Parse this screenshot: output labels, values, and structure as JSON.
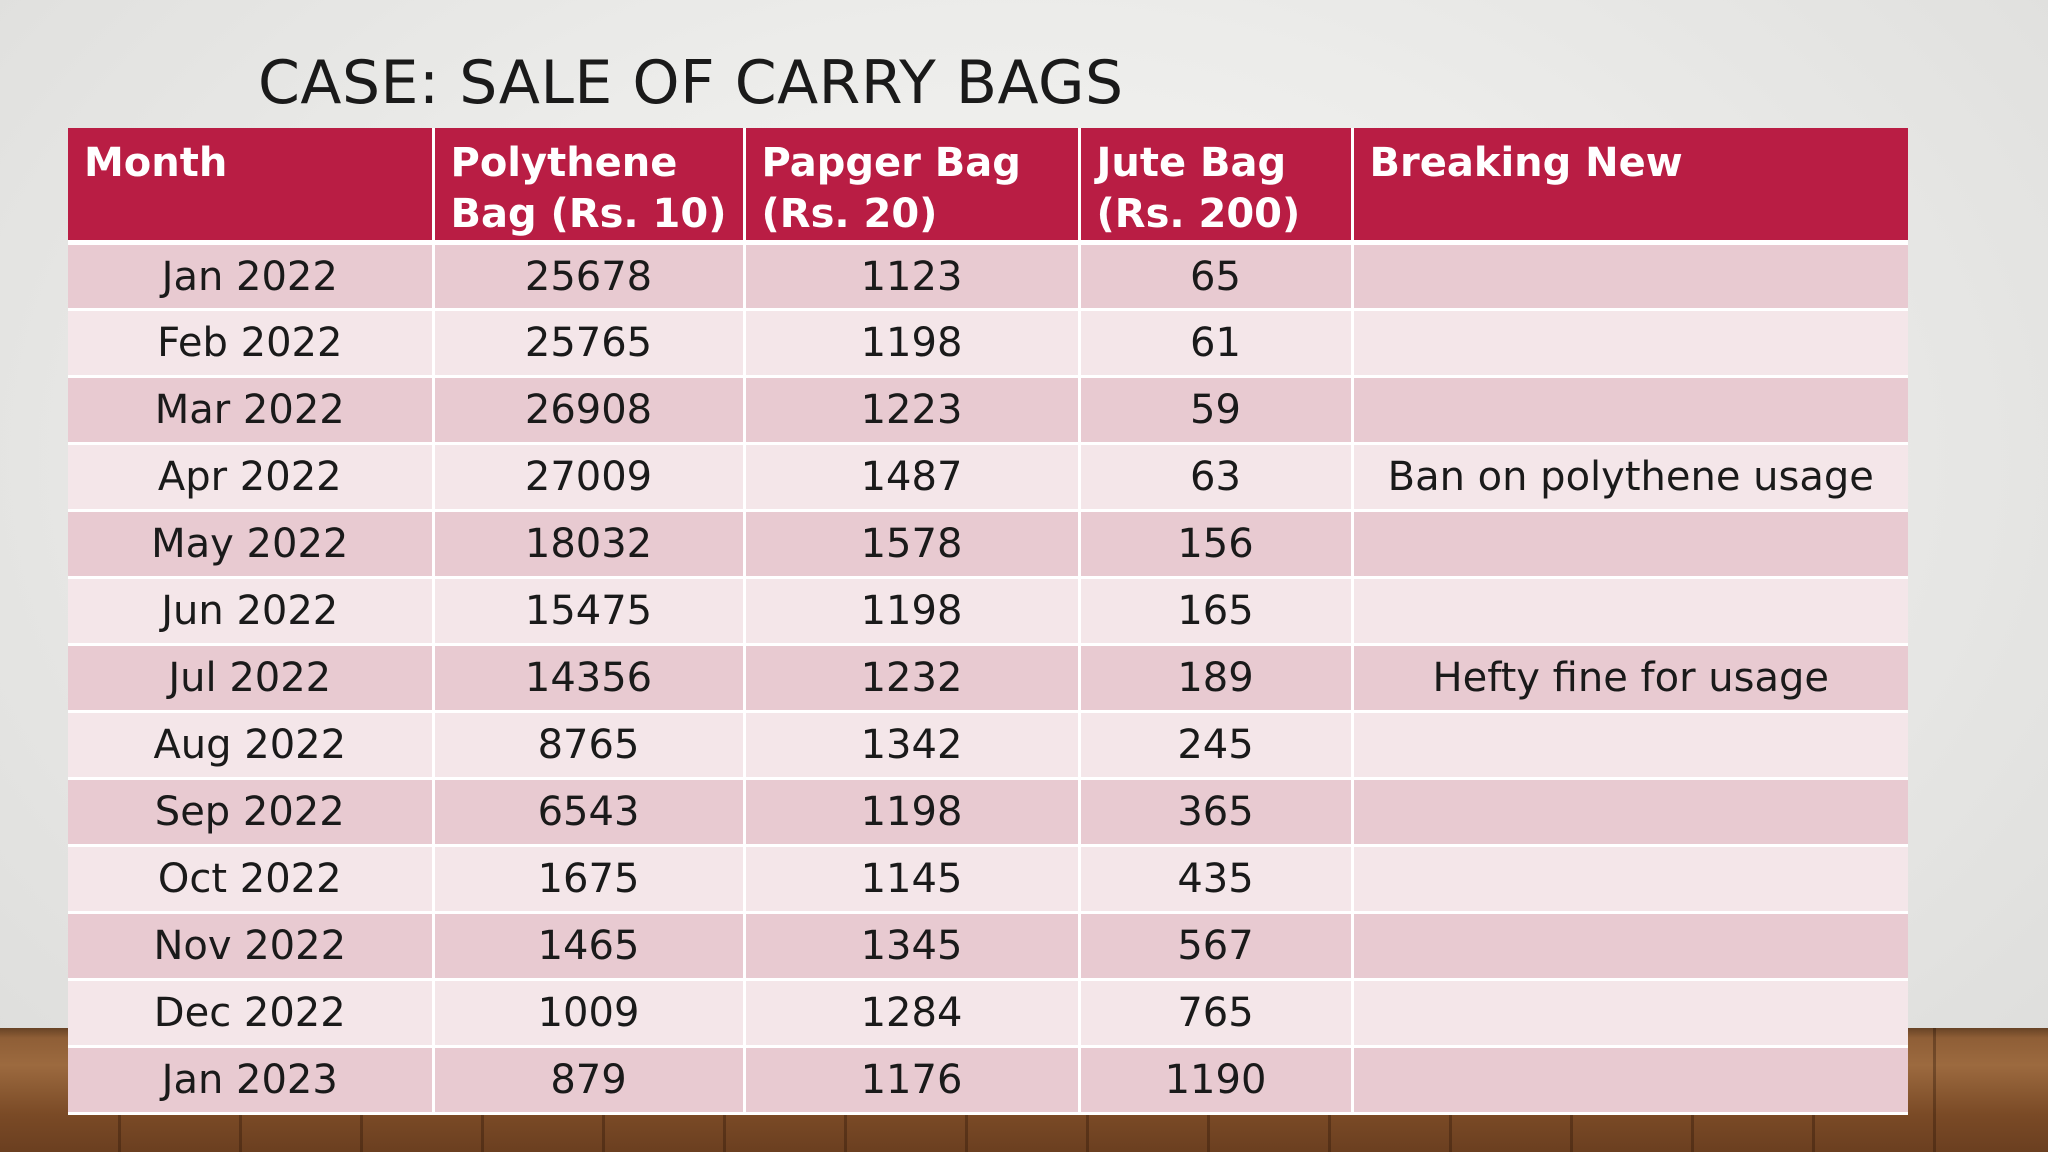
{
  "title": "CASE: SALE OF CARRY BAGS",
  "table": {
    "headers": [
      [
        "Month"
      ],
      [
        "Polythene",
        "Bag (Rs. 10)"
      ],
      [
        "Papger Bag",
        "(Rs. 20)"
      ],
      [
        "Jute Bag",
        "(Rs. 200)"
      ],
      [
        "Breaking New"
      ]
    ],
    "rows": [
      [
        "Jan 2022",
        "25678",
        "1123",
        "65",
        ""
      ],
      [
        "Feb 2022",
        "25765",
        "1198",
        "61",
        ""
      ],
      [
        "Mar 2022",
        "26908",
        "1223",
        "59",
        ""
      ],
      [
        "Apr 2022",
        "27009",
        "1487",
        "63",
        "Ban on polythene usage"
      ],
      [
        "May 2022",
        "18032",
        "1578",
        "156",
        ""
      ],
      [
        "Jun 2022",
        "15475",
        "1198",
        "165",
        ""
      ],
      [
        "Jul 2022",
        "14356",
        "1232",
        "189",
        "Hefty fine for usage"
      ],
      [
        "Aug 2022",
        "8765",
        "1342",
        "245",
        ""
      ],
      [
        "Sep 2022",
        "6543",
        "1198",
        "365",
        ""
      ],
      [
        "Oct 2022",
        "1675",
        "1145",
        "435",
        ""
      ],
      [
        "Nov 2022",
        "1465",
        "1345",
        "567",
        ""
      ],
      [
        "Dec 2022",
        "1009",
        "1284",
        "765",
        ""
      ],
      [
        "Jan 2023",
        "879",
        "1176",
        "1190",
        ""
      ]
    ]
  },
  "colors": {
    "header_bg": "#b91d44",
    "row_odd_bg": "#e8cad1",
    "row_even_bg": "#f4e6e9",
    "header_text": "#ffffff"
  }
}
